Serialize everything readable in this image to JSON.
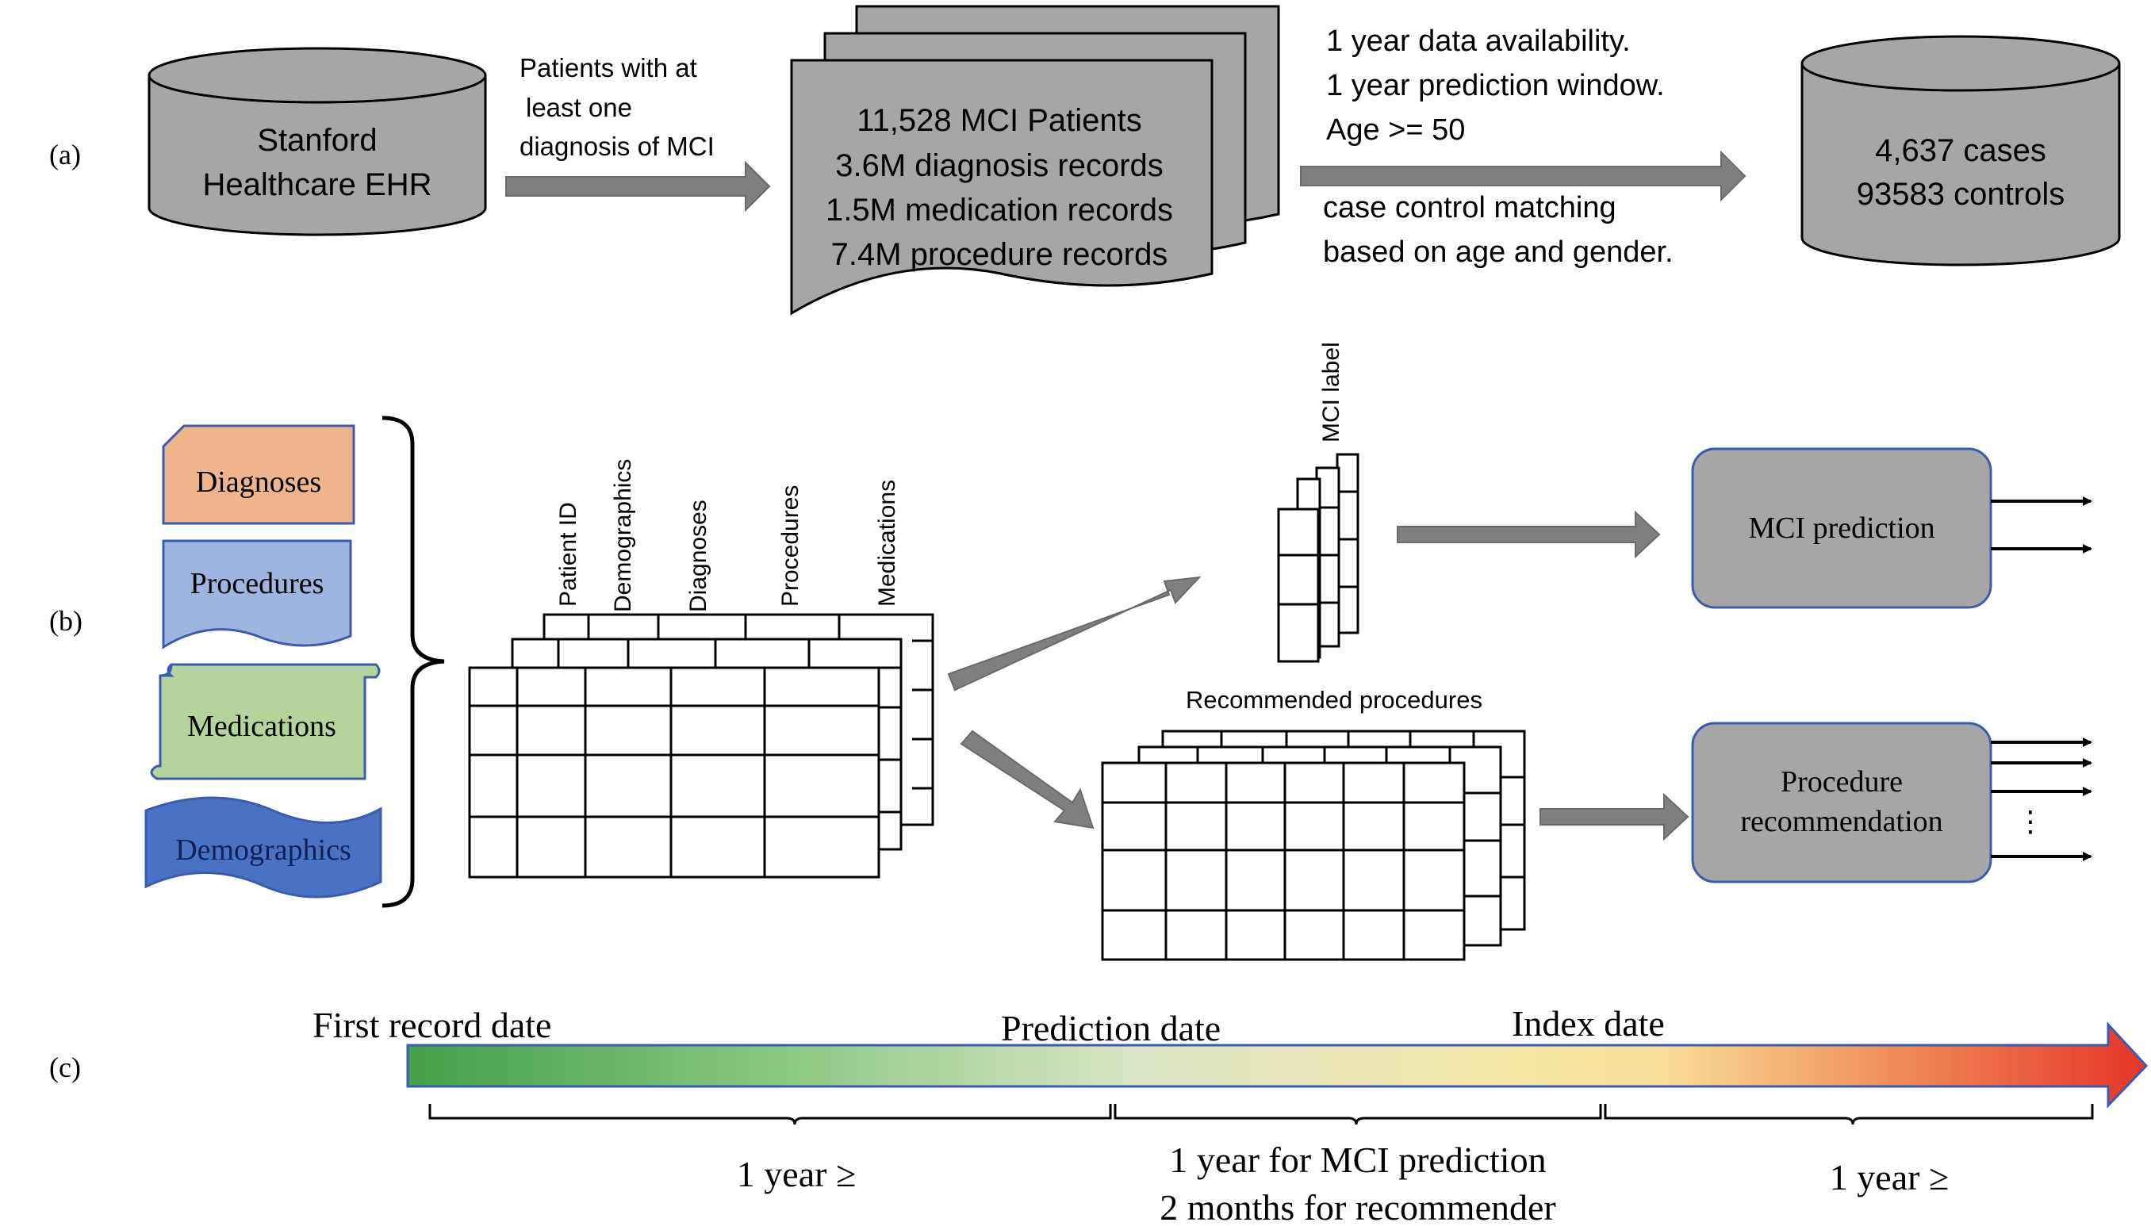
{
  "panels": {
    "a": "(a)",
    "b": "(b)",
    "c": "(c)"
  },
  "panel_a": {
    "source_db": [
      "Stanford",
      "Healthcare EHR"
    ],
    "filter_note": [
      "Patients with at",
      "least one",
      "diagnosis of MCI"
    ],
    "records": [
      "11,528 MCI Patients",
      "3.6M diagnosis records",
      "1.5M medication records",
      "7.4M procedure records"
    ],
    "criteria": [
      "1 year data availability.",
      "1 year prediction window.",
      "Age >= 50"
    ],
    "matching": [
      "case control matching",
      "based on age and gender."
    ],
    "cohort": [
      "4,637 cases",
      "93583 controls"
    ]
  },
  "panel_b": {
    "sources": {
      "diagnoses": "Diagnoses",
      "procedures": "Procedures",
      "medications": "Medications",
      "demographics": "Demographics"
    },
    "table_columns": [
      "Patient ID",
      "Demographics",
      "Diagnoses",
      "Procedures",
      "Medications"
    ],
    "label_column": "MCI label",
    "recommended_title": "Recommended procedures",
    "model_prediction": "MCI prediction",
    "model_recommendation": [
      "Procedure",
      "recommendation"
    ],
    "ellipsis": "⋮"
  },
  "panel_c": {
    "first_record": "First record date",
    "prediction_date": "Prediction date",
    "index_date": "Index date",
    "span_1": "1 year ≥",
    "span_2": [
      "1 year for MCI prediction",
      "2 months for recommender"
    ],
    "span_3": "1 year ≥"
  },
  "colors": {
    "cylinder_fill": "#a6a6a6",
    "arrow_fill": "#7f7f7f",
    "diagnoses_fill": "#f0b48c",
    "procedures_fill": "#9eb5e0",
    "medications_fill": "#b3d49b",
    "demographics_fill": "#4a72c4",
    "model_fill": "#a6a6a6",
    "timeline_start": "#4caf50",
    "timeline_mid": "#fae79e",
    "timeline_end": "#e53a2b"
  }
}
